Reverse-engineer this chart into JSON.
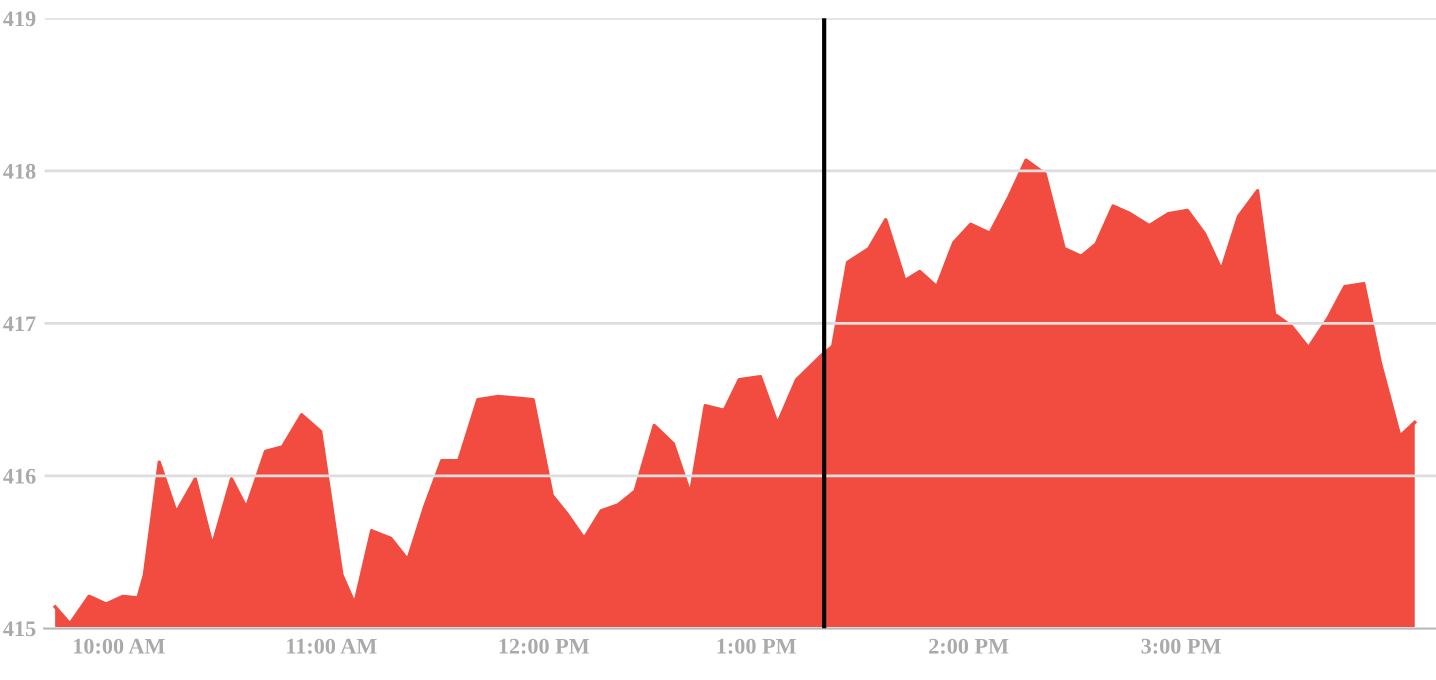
{
  "chart_data": {
    "type": "area",
    "xlim": [
      9.65,
      16.2
    ],
    "ylim": [
      415,
      419
    ],
    "yticks": [
      415,
      416,
      417,
      418,
      419
    ],
    "xticks": [
      {
        "value": 10,
        "label": "10:00 AM"
      },
      {
        "value": 11,
        "label": "11:00 AM"
      },
      {
        "value": 12,
        "label": "12:00 PM"
      },
      {
        "value": 13,
        "label": "1:00 PM"
      },
      {
        "value": 14,
        "label": "2:00 PM"
      },
      {
        "value": 15,
        "label": "3:00 PM"
      }
    ],
    "grid": "y",
    "series": [
      {
        "color": "#f24c40",
        "x": [
          9.7,
          9.77,
          9.86,
          9.94,
          10.02,
          10.09,
          10.12,
          10.19,
          10.27,
          10.36,
          10.44,
          10.53,
          10.6,
          10.69,
          10.77,
          10.86,
          10.95,
          11.05,
          11.11,
          11.19,
          11.28,
          11.36,
          11.44,
          11.52,
          11.6,
          11.69,
          11.78,
          11.88,
          11.95,
          12.04,
          12.11,
          12.19,
          12.27,
          12.35,
          12.43,
          12.52,
          12.61,
          12.69,
          12.76,
          12.85,
          12.92,
          13.02,
          13.1,
          13.19,
          13.3,
          13.36,
          13.43,
          13.53,
          13.61,
          13.7,
          13.77,
          13.85,
          13.93,
          14.01,
          14.1,
          14.19,
          14.27,
          14.36,
          14.45,
          14.53,
          14.6,
          14.68,
          14.76,
          14.85,
          14.94,
          15.03,
          15.11,
          15.19,
          15.27,
          15.36,
          15.44,
          15.52,
          15.6,
          15.69,
          15.77,
          15.86,
          15.94,
          16.03,
          16.1
        ],
        "values": [
          415.14,
          415.03,
          415.21,
          415.16,
          415.21,
          415.2,
          415.35,
          416.09,
          415.76,
          415.98,
          415.54,
          415.98,
          415.79,
          416.16,
          416.19,
          416.4,
          416.29,
          415.35,
          415.16,
          415.64,
          415.59,
          415.45,
          415.8,
          416.1,
          416.1,
          416.5,
          416.52,
          416.51,
          416.5,
          415.87,
          415.75,
          415.59,
          415.77,
          415.81,
          415.9,
          416.33,
          416.21,
          415.88,
          416.46,
          416.43,
          416.63,
          416.65,
          416.34,
          416.63,
          416.78,
          416.85,
          417.4,
          417.49,
          417.68,
          417.28,
          417.34,
          417.24,
          417.53,
          417.65,
          417.59,
          417.83,
          418.07,
          417.98,
          417.49,
          417.44,
          417.52,
          417.77,
          417.72,
          417.64,
          417.72,
          417.74,
          417.59,
          417.35,
          417.7,
          417.87,
          417.06,
          416.98,
          416.84,
          417.03,
          417.24,
          417.26,
          416.73,
          416.26,
          416.35
        ]
      }
    ],
    "ref_lines": [
      {
        "axis": "x",
        "value": 13.32,
        "color": "#000000"
      }
    ]
  }
}
